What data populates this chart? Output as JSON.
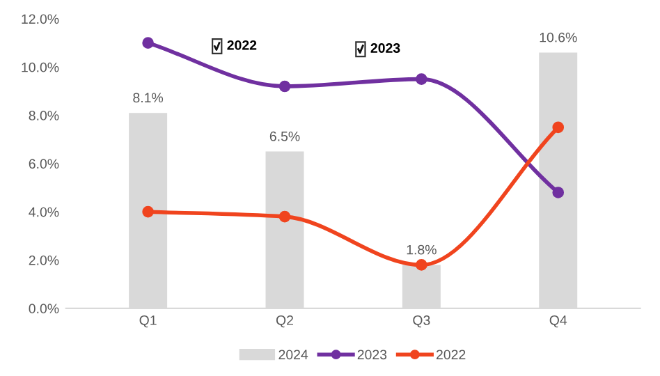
{
  "chart_data": {
    "type": "bar",
    "categories": [
      "Q1",
      "Q2",
      "Q3",
      "Q4"
    ],
    "series": [
      {
        "name": "2024",
        "color": "#d9d9d9",
        "values": [
          8.1,
          6.5,
          1.8,
          10.6
        ],
        "value_labels": [
          "8.1%",
          "6.5%",
          "1.8%",
          "10.6%"
        ]
      },
      {
        "name": "2023",
        "type": "line",
        "color": "#7030a0",
        "values": [
          11.0,
          9.2,
          9.5,
          4.8
        ]
      },
      {
        "name": "2022",
        "type": "line",
        "color": "#f0441e",
        "values": [
          4.0,
          3.8,
          1.8,
          7.5
        ]
      }
    ],
    "ylim": [
      0,
      12
    ],
    "yticks": [
      {
        "value": 0,
        "label": "0.0%"
      },
      {
        "value": 2,
        "label": "2.0%"
      },
      {
        "value": 4,
        "label": "4.0%"
      },
      {
        "value": 6,
        "label": "6.0%"
      },
      {
        "value": 8,
        "label": "8.0%"
      },
      {
        "value": 10,
        "label": "10.0%"
      },
      {
        "value": 12,
        "label": "12.0%"
      }
    ],
    "annotations": [
      "2022",
      "2023"
    ],
    "marker": "circle",
    "line_style": "solid",
    "grid": false,
    "legend": "bottom"
  }
}
